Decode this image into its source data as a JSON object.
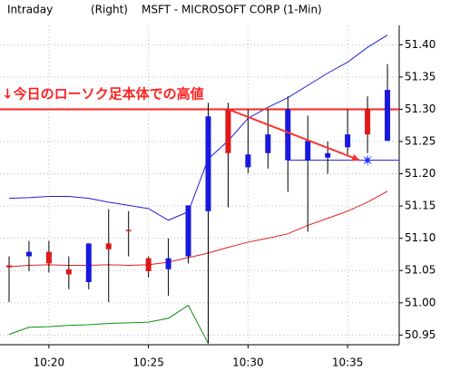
{
  "chart_data": {
    "type": "candlestick",
    "header": [
      "Intraday",
      "(Right)",
      "MSFT - MICROSOFT CORP  (1-Min)"
    ],
    "annotation": "↓今日のローソク足本体での高値",
    "categories": [
      null,
      null,
      "10:20",
      null,
      null,
      null,
      null,
      "10:25",
      null,
      null,
      null,
      null,
      "10:30",
      null,
      null,
      null,
      null,
      "10:35",
      null,
      null
    ],
    "open": [
      51.055,
      51.079,
      51.061,
      51.044,
      51.092,
      51.083,
      51.113,
      51.049,
      51.069,
      51.151,
      51.289,
      51.232,
      51.23,
      51.261,
      51.3,
      51.251,
      51.232,
      51.261,
      51.261,
      51.33
    ],
    "high": [
      51.072,
      51.096,
      51.096,
      51.072,
      51.092,
      51.145,
      51.142,
      51.072,
      51.1,
      51.151,
      51.31,
      51.31,
      51.3,
      51.3,
      51.32,
      51.29,
      51.25,
      51.3,
      51.32,
      51.37
    ],
    "low": [
      51.001,
      51.049,
      51.047,
      51.021,
      51.021,
      51.001,
      51.072,
      51.039,
      51.011,
      51.061,
      50.937,
      51.148,
      51.201,
      51.208,
      51.172,
      51.11,
      51.2,
      51.23,
      51.232,
      51.251
    ],
    "close": [
      51.058,
      51.072,
      51.079,
      51.052,
      51.032,
      51.092,
      51.113,
      51.069,
      51.052,
      51.072,
      51.142,
      51.3,
      51.21,
      51.232,
      51.221,
      51.221,
      51.225,
      51.241,
      51.3,
      51.251
    ],
    "up_color": "#e01818",
    "down_color": "#1818e0",
    "series": [
      {
        "color": "#2020d0",
        "values": [
          51.162,
          51.163,
          51.165,
          51.165,
          51.162,
          51.156,
          51.151,
          51.146,
          51.128,
          51.141,
          51.223,
          51.251,
          51.286,
          51.303,
          51.318,
          51.337,
          51.356,
          51.373,
          51.396,
          51.415
        ]
      },
      {
        "color": "#e02020",
        "values": [
          51.056,
          51.058,
          51.059,
          51.058,
          51.058,
          51.059,
          51.058,
          51.059,
          51.063,
          51.07,
          51.077,
          51.086,
          51.094,
          51.1,
          51.107,
          51.12,
          51.131,
          51.142,
          51.156,
          51.173
        ]
      },
      {
        "color": "#109010",
        "values": [
          50.951,
          50.962,
          50.963,
          50.965,
          50.966,
          50.968,
          50.969,
          50.97,
          50.976,
          50.996,
          50.937,
          null,
          null,
          null,
          null,
          null,
          null,
          null,
          null,
          null
        ]
      }
    ],
    "ylim": [
      50.935,
      51.43
    ],
    "yticks": [
      {
        "value": 50.95,
        "label": "50.95"
      },
      {
        "value": 51.0,
        "label": "51.00"
      },
      {
        "value": 51.05,
        "label": "51.05"
      },
      {
        "value": 51.1,
        "label": "51.10"
      },
      {
        "value": 51.15,
        "label": "51.15"
      },
      {
        "value": 51.2,
        "label": "51.20"
      },
      {
        "value": 51.25,
        "label": "51.25"
      },
      {
        "value": 51.3,
        "label": "51.30"
      },
      {
        "value": 51.35,
        "label": "51.35"
      },
      {
        "value": 51.4,
        "label": "51.40"
      }
    ],
    "high_line": {
      "value": 51.3,
      "color": "#ff2020"
    },
    "support_line": {
      "value": 51.221,
      "from": 14,
      "color": "#2020d0"
    },
    "arrow": {
      "from": [
        11,
        51.3
      ],
      "to": [
        17.6,
        51.221
      ],
      "color": "#ff3030"
    },
    "marker": {
      "x": 18,
      "y": 51.221,
      "color": "#2030ff"
    }
  }
}
